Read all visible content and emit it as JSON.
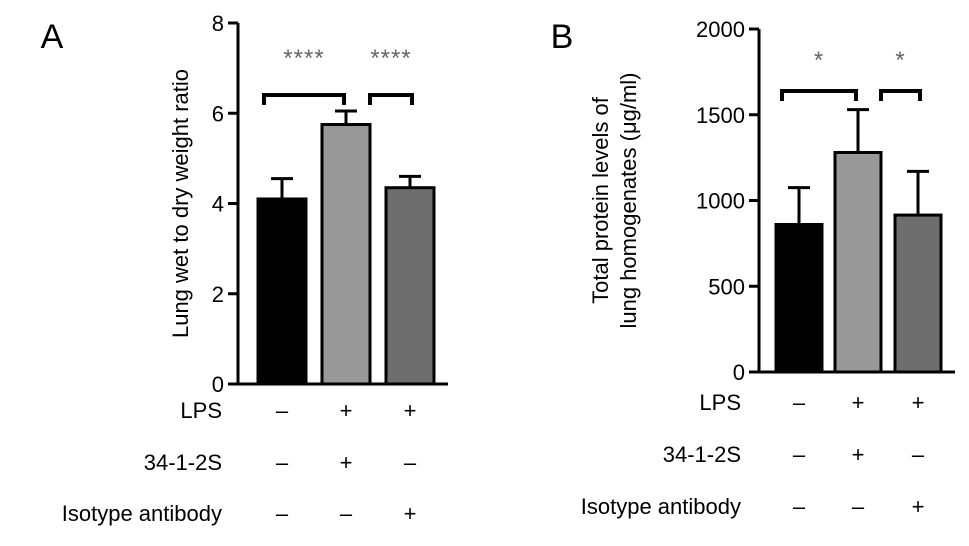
{
  "conditions_header": [
    "LPS",
    "34-1-2S",
    "Isotype antibody"
  ],
  "chart_data": [
    {
      "panel": "A",
      "type": "bar",
      "ylabel": "Lung wet to dry weight ratio",
      "ylim": [
        0,
        8
      ],
      "yticks": [
        "0",
        "2",
        "4",
        "6",
        "8"
      ],
      "values": [
        4.1,
        5.75,
        4.35
      ],
      "errors": [
        0.45,
        0.3,
        0.25
      ],
      "bar_colors": [
        "#000000",
        "#999999",
        "#6e6e6e"
      ],
      "conditions": [
        [
          "–",
          "+",
          "+"
        ],
        [
          "–",
          "+",
          "–"
        ],
        [
          "–",
          "–",
          "+"
        ]
      ],
      "significance": [
        {
          "from": 0,
          "to": 1,
          "label": "****"
        },
        {
          "from": 1,
          "to": 2,
          "label": "****"
        }
      ]
    },
    {
      "panel": "B",
      "type": "bar",
      "ylabel": "Total protein levels of lung homogenates (μg/ml)",
      "ylabel_lines": [
        "Total protein levels of",
        "lung homogenates (μg/ml)"
      ],
      "ylim": [
        0,
        2000
      ],
      "yticks": [
        "0",
        "500",
        "1000",
        "1500",
        "2000"
      ],
      "values": [
        860,
        1280,
        915
      ],
      "errors": [
        215,
        250,
        255
      ],
      "bar_colors": [
        "#000000",
        "#999999",
        "#6e6e6e"
      ],
      "conditions": [
        [
          "–",
          "+",
          "+"
        ],
        [
          "–",
          "+",
          "–"
        ],
        [
          "–",
          "–",
          "+"
        ]
      ],
      "significance": [
        {
          "from": 0,
          "to": 1,
          "label": "*"
        },
        {
          "from": 1,
          "to": 2,
          "label": "*"
        }
      ]
    }
  ]
}
